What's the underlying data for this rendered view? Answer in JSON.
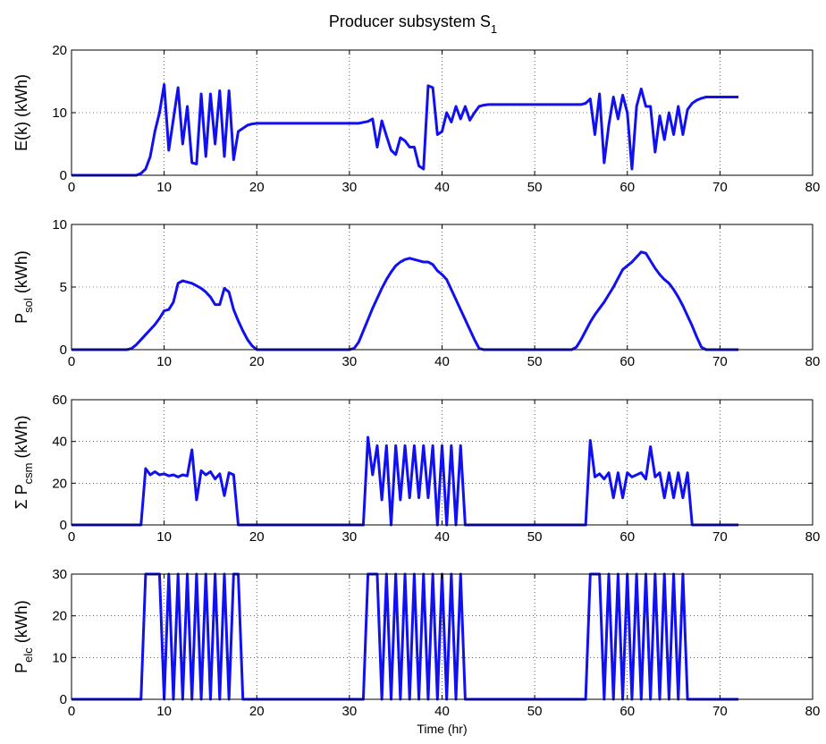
{
  "title": "Producer subsystem S",
  "title_sub": "1",
  "line_color": "#1010f0",
  "chart_data": [
    {
      "type": "line",
      "ylabel": "E(k) (kWh)",
      "xlim": [
        0,
        80
      ],
      "ylim": [
        0,
        20
      ],
      "xticks": [
        0,
        10,
        20,
        30,
        40,
        50,
        60,
        70,
        80
      ],
      "yticks": [
        0,
        10,
        20
      ],
      "grid": true,
      "series": [
        {
          "x": [
            0,
            6,
            7,
            7.5,
            8,
            8.5,
            9,
            9.5,
            10,
            10.5,
            11,
            11.5,
            12,
            12.5,
            13,
            13.5,
            14,
            14.5,
            15,
            15.5,
            16,
            16.5,
            17,
            17.5,
            18,
            18.5,
            19,
            19.5,
            20,
            22,
            25,
            28,
            31,
            32,
            32.5,
            33,
            33.5,
            34,
            34.5,
            35,
            35.5,
            36,
            36.5,
            37,
            37.5,
            38,
            38.5,
            39,
            39.5,
            40,
            40.5,
            41,
            41.5,
            42,
            42.5,
            43,
            43.5,
            44,
            44.5,
            45,
            50,
            55,
            55.5,
            56,
            56.5,
            57,
            57.5,
            58,
            58.5,
            59,
            59.5,
            60,
            60.5,
            61,
            61.5,
            62,
            62.5,
            63,
            63.5,
            64,
            64.5,
            65,
            65.5,
            66,
            66.5,
            67,
            67.5,
            68,
            68.5,
            69,
            70,
            72
          ],
          "y": [
            0,
            0,
            0,
            0.3,
            1,
            3,
            7,
            10,
            14.5,
            4,
            9,
            14,
            5,
            11,
            2,
            1.8,
            13,
            3,
            13,
            5,
            13.5,
            3,
            13.5,
            2.5,
            7,
            7.5,
            8,
            8.2,
            8.3,
            8.3,
            8.3,
            8.3,
            8.3,
            8.6,
            9,
            4.5,
            8.7,
            6.3,
            4,
            3.3,
            6,
            5.5,
            4.5,
            4.5,
            1.5,
            1,
            14.3,
            14,
            6.5,
            7,
            10,
            8.5,
            11,
            9,
            11,
            8.8,
            10,
            11,
            11.2,
            11.3,
            11.3,
            11.3,
            11.5,
            12.2,
            6.5,
            13,
            2,
            8,
            12.5,
            9,
            12.8,
            10,
            1,
            11,
            13.8,
            11,
            11,
            3.7,
            9.5,
            5.7,
            10,
            6.5,
            11,
            6.5,
            10.5,
            11.5,
            12,
            12.3,
            12.5,
            12.5,
            12.5,
            12.5
          ]
        }
      ]
    },
    {
      "type": "line",
      "ylabel": "P",
      "ylabel_sub": "sol",
      "ylabel_rest": " (kWh)",
      "xlim": [
        0,
        80
      ],
      "ylim": [
        0,
        10
      ],
      "xticks": [
        0,
        10,
        20,
        30,
        40,
        50,
        60,
        70,
        80
      ],
      "yticks": [
        0,
        5,
        10
      ],
      "grid": true,
      "series": [
        {
          "x": [
            0,
            6,
            6.5,
            7,
            7.5,
            8,
            8.5,
            9,
            9.5,
            10,
            10.5,
            11,
            11.5,
            12,
            12.5,
            13,
            13.5,
            14,
            14.5,
            15,
            15.5,
            16,
            16.5,
            17,
            17.5,
            18,
            18.5,
            19,
            19.5,
            20,
            25,
            30,
            30.5,
            31,
            31.5,
            32,
            32.5,
            33,
            33.5,
            34,
            34.5,
            35,
            35.5,
            36,
            36.5,
            37,
            37.5,
            38,
            38.5,
            39,
            39.5,
            40,
            40.5,
            41,
            41.5,
            42,
            42.5,
            43,
            43.5,
            44,
            44.5,
            45,
            50,
            54,
            54.5,
            55,
            55.5,
            56,
            56.5,
            57,
            57.5,
            58,
            58.5,
            59,
            59.5,
            60,
            60.5,
            61,
            61.5,
            62,
            62.5,
            63,
            63.5,
            64,
            64.5,
            65,
            65.5,
            66,
            66.5,
            67,
            67.5,
            68,
            68.5,
            69,
            70,
            72
          ],
          "y": [
            0,
            0,
            0.1,
            0.4,
            0.8,
            1.2,
            1.6,
            2,
            2.5,
            3.1,
            3.2,
            3.8,
            5.3,
            5.5,
            5.4,
            5.3,
            5.1,
            4.9,
            4.6,
            4.2,
            3.6,
            3.6,
            4.9,
            4.6,
            3.2,
            2.3,
            1.5,
            0.8,
            0.3,
            0,
            0,
            0,
            0.1,
            0.6,
            1.5,
            2.4,
            3.3,
            4.1,
            4.9,
            5.6,
            6.2,
            6.7,
            7,
            7.2,
            7.3,
            7.2,
            7.1,
            7,
            7,
            6.8,
            6.3,
            6,
            5.6,
            4.8,
            4,
            3.2,
            2.4,
            1.6,
            0.8,
            0.1,
            0,
            0,
            0,
            0,
            0.2,
            0.8,
            1.5,
            2.2,
            2.8,
            3.3,
            3.8,
            4.4,
            5,
            5.7,
            6.4,
            6.7,
            7,
            7.4,
            7.8,
            7.7,
            7.1,
            6.5,
            6,
            5.6,
            5.3,
            4.8,
            4.2,
            3.5,
            2.7,
            1.9,
            1,
            0.2,
            0,
            0,
            0,
            0
          ]
        }
      ]
    },
    {
      "type": "line",
      "ylabel": "Σ P",
      "ylabel_sub": "csm",
      "ylabel_rest": " (kWh)",
      "xlim": [
        0,
        80
      ],
      "ylim": [
        0,
        60
      ],
      "xticks": [
        0,
        10,
        20,
        30,
        40,
        50,
        60,
        70,
        80
      ],
      "yticks": [
        0,
        20,
        40,
        60
      ],
      "grid": true,
      "series": [
        {
          "x": [
            0,
            7.5,
            8,
            8.5,
            9,
            9.5,
            10,
            10.5,
            11,
            11.5,
            12,
            12.5,
            13,
            13.5,
            14,
            14.5,
            15,
            15.5,
            16,
            16.5,
            17,
            17.5,
            18,
            18.5,
            19,
            31.5,
            32,
            32.5,
            33,
            33.5,
            34,
            34.5,
            35,
            35.5,
            36,
            36.5,
            37,
            37.5,
            38,
            38.5,
            39,
            39.5,
            40,
            40.5,
            41,
            41.5,
            42,
            42.5,
            43,
            55.5,
            56,
            56.5,
            57,
            57.5,
            58,
            58.5,
            59,
            59.5,
            60,
            60.5,
            61,
            61.5,
            62,
            62.5,
            63,
            63.5,
            64,
            64.5,
            65,
            65.5,
            66,
            66.5,
            67,
            70,
            72
          ],
          "y": [
            0,
            0,
            27,
            24,
            25.5,
            24,
            24.5,
            23.5,
            24,
            23,
            24,
            23.5,
            36,
            12,
            26,
            24,
            25.5,
            22,
            24.5,
            14,
            25,
            24,
            0,
            0,
            0,
            0,
            42,
            24,
            38,
            12,
            38,
            0,
            38,
            12,
            38,
            13,
            38,
            13,
            38,
            13,
            38,
            0,
            38,
            0,
            38,
            0,
            38,
            0,
            0,
            0,
            40.5,
            23,
            24.5,
            22,
            25,
            13,
            25,
            13,
            25,
            23,
            24,
            25,
            22,
            37.5,
            23,
            25,
            13,
            25,
            13,
            25,
            13,
            25,
            0,
            0,
            0
          ]
        }
      ]
    },
    {
      "type": "line",
      "ylabel": "P",
      "ylabel_sub": "elc",
      "ylabel_rest": " (kWh)",
      "xlabel": "Time (hr)",
      "xlim": [
        0,
        80
      ],
      "ylim": [
        0,
        30
      ],
      "xticks": [
        0,
        10,
        20,
        30,
        40,
        50,
        60,
        70,
        80
      ],
      "yticks": [
        0,
        10,
        20,
        30
      ],
      "grid": true,
      "series": [
        {
          "x": [
            0,
            7.5,
            8,
            9.5,
            10,
            10.5,
            11,
            11.5,
            12,
            12.5,
            13,
            13.5,
            14,
            14.5,
            15,
            15.5,
            16,
            16.5,
            17,
            17.5,
            18,
            18.5,
            19,
            31.5,
            32,
            33,
            33.5,
            34,
            34.5,
            35,
            35.5,
            36,
            36.5,
            37,
            37.5,
            38,
            38.5,
            39,
            39.5,
            40,
            40.5,
            41,
            41.5,
            42,
            42.5,
            43,
            55.5,
            56,
            57,
            57.5,
            58,
            58.5,
            59,
            59.5,
            60,
            60.5,
            61,
            61.5,
            62,
            62.5,
            63,
            63.5,
            64,
            64.5,
            65,
            65.5,
            66,
            66.5,
            67,
            70,
            72
          ],
          "y": [
            0,
            0,
            30,
            30,
            0,
            30,
            0,
            30,
            0,
            30,
            0,
            30,
            0,
            30,
            0,
            30,
            0,
            30,
            0,
            30,
            30,
            0,
            0,
            0,
            30,
            30,
            0,
            30,
            0,
            30,
            0,
            30,
            0,
            30,
            0,
            30,
            0,
            30,
            0,
            30,
            0,
            30,
            0,
            30,
            0,
            0,
            0,
            30,
            30,
            0,
            30,
            0,
            30,
            0,
            30,
            0,
            30,
            0,
            30,
            0,
            30,
            0,
            30,
            0,
            30,
            0,
            30,
            0,
            0,
            0,
            0
          ]
        }
      ]
    }
  ]
}
